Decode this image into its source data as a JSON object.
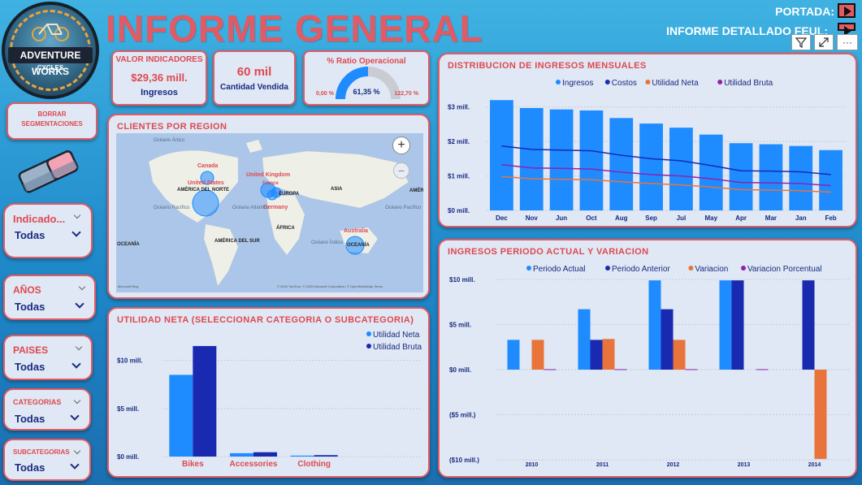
{
  "header": {
    "title": "INFORME GENERAL",
    "logo_text": "ADVENTURE WORKS",
    "logo_sub": "CYCLES",
    "nav_portada": "PORTADA:",
    "nav_detallado": "INFORME DETALLADO FEUL:"
  },
  "kpis": {
    "indicadores_title": "VALOR INDICADORES",
    "ingresos_value": "$29,36 mill.",
    "ingresos_label": "Ingresos",
    "cantidad_value": "60 mil",
    "cantidad_label": "Cantidad Vendida",
    "ratio_title": "% Ratio Operacional",
    "ratio_value": "61,35 %",
    "ratio_min": "0,00 %",
    "ratio_max": "122,70 %",
    "ratio_fraction": 0.5
  },
  "slicers": {
    "borrar_line1": "BORRAR",
    "borrar_line2": "SEGMENTACIONES",
    "indicador_label": "Indicado...",
    "indicador_value": "Todas",
    "anios_label": "AÑOS",
    "anios_value": "Todas",
    "paises_label": "PAISES",
    "paises_value": "Todas",
    "categorias_label": "CATEGORIAS",
    "categorias_value": "Todas",
    "subcategorias_label": "SUBCATEGORIAS",
    "subcategorias_value": "Todas"
  },
  "map": {
    "title": "CLIENTES POR REGION",
    "labels": [
      "Océano Ártico",
      "Canada",
      "United States",
      "AMÉRICA DEL NORTE",
      "United Kingdom",
      "France",
      "EUROPA",
      "Germany",
      "ASIA",
      "AMÉR",
      "Océano Pacífico",
      "Océano Atlántico",
      "ÁFRICA",
      "Océano Pacífico",
      "OCEANÍA",
      "AMÉRICA DEL SUR",
      "Océano Índico",
      "Australia",
      "OCEANÍA"
    ],
    "attribution": "© 2025 TomTom, © 2025 Microsoft Corporation, © OpenStreetMap  Terms",
    "bing": "Microsoft Bing",
    "zoom_in": "+",
    "zoom_out": "−"
  },
  "colors": {
    "accent_red": "#e0484f",
    "navy": "#1a2a80",
    "blue": "#1e8bff",
    "dark_blue": "#1a2ab0",
    "orange": "#e8743b",
    "purple": "#8e24aa"
  },
  "chart_data": [
    {
      "type": "bar",
      "title": "DISTRIBUCION DE INGRESOS MENSUALES",
      "categories": [
        "Dec",
        "Nov",
        "Jun",
        "Oct",
        "Aug",
        "Sep",
        "Jul",
        "May",
        "Apr",
        "Mar",
        "Jan",
        "Feb"
      ],
      "yticks": [
        "$3 mill.",
        "$2 mill.",
        "$1 mill.",
        "$0 mill."
      ],
      "ylim": [
        0,
        3.3
      ],
      "series": [
        {
          "name": "Ingresos",
          "type": "bar",
          "values": [
            3.2,
            2.97,
            2.93,
            2.9,
            2.68,
            2.52,
            2.4,
            2.2,
            1.95,
            1.92,
            1.87,
            1.75
          ]
        },
        {
          "name": "Costos",
          "type": "line",
          "values": [
            1.87,
            1.77,
            1.75,
            1.73,
            1.6,
            1.5,
            1.44,
            1.3,
            1.15,
            1.14,
            1.12,
            1.04
          ]
        },
        {
          "name": "Utilidad Neta",
          "type": "line",
          "values": [
            0.98,
            0.92,
            0.9,
            0.89,
            0.83,
            0.78,
            0.74,
            0.68,
            0.6,
            0.59,
            0.57,
            0.53
          ]
        },
        {
          "name": "Utilidad Bruta",
          "type": "line",
          "values": [
            1.33,
            1.23,
            1.22,
            1.2,
            1.11,
            1.04,
            1.0,
            0.92,
            0.81,
            0.8,
            0.78,
            0.72
          ]
        }
      ]
    },
    {
      "type": "bar",
      "title": "INGRESOS PERIODO ACTUAL Y VARIACION",
      "categories": [
        "2010",
        "2011",
        "2012",
        "2013",
        "2014"
      ],
      "yticks": [
        "$10 mill.",
        "$5 mill.",
        "$0 mill.",
        "($5 mill.)",
        "($10 mill.)"
      ],
      "ylim": [
        -10,
        10
      ],
      "series": [
        {
          "name": "Periodo  Actual",
          "values": [
            3.3,
            6.7,
            9.9,
            9.9,
            0
          ]
        },
        {
          "name": "Periodo Anterior",
          "values": [
            0,
            3.3,
            6.7,
            9.9,
            9.9
          ]
        },
        {
          "name": "Variacion",
          "values": [
            3.3,
            3.4,
            3.3,
            0,
            -9.9
          ]
        },
        {
          "name": "Variacion Porcentual",
          "values": [
            0.05,
            0.05,
            0.05,
            0.05,
            0
          ]
        }
      ]
    },
    {
      "type": "bar",
      "title": "UTILIDAD NETA (SELECCIONAR CATEGORIA O SUBCATEGORIA)",
      "categories": [
        "Bikes",
        "Accessories",
        "Clothing"
      ],
      "yticks": [
        "$10 mill.",
        "$5 mill.",
        "$0 mill."
      ],
      "ylim": [
        0,
        12
      ],
      "series": [
        {
          "name": "Utilidad Neta",
          "values": [
            8.5,
            0.35,
            0.1
          ]
        },
        {
          "name": "Utilidad Bruta",
          "values": [
            11.5,
            0.45,
            0.15
          ]
        }
      ]
    }
  ]
}
